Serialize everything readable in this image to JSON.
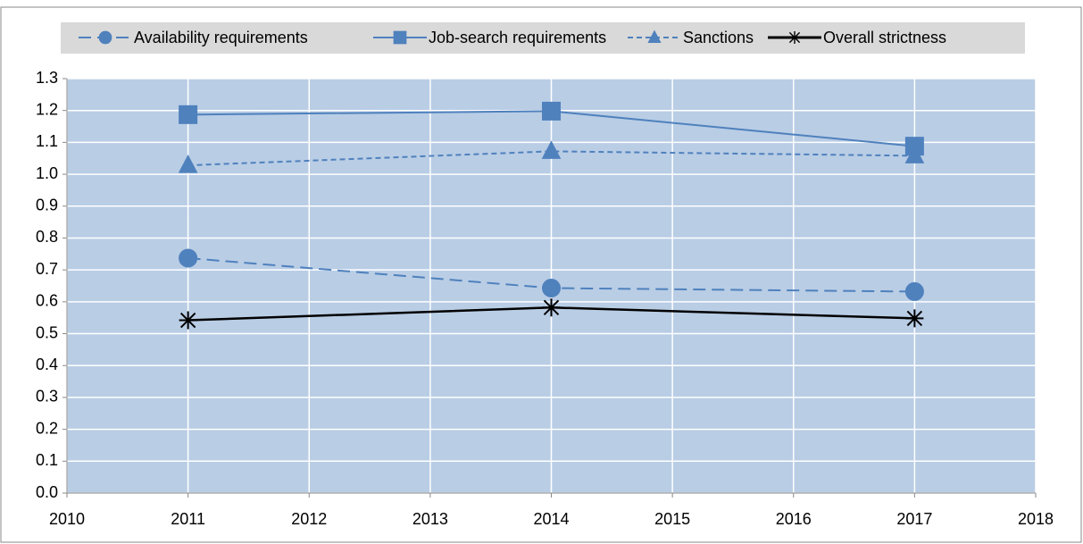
{
  "chart_data": {
    "type": "line",
    "x": [
      2011,
      2014,
      2017
    ],
    "series": [
      {
        "name": "Availability requirements",
        "color": "#4f81bd",
        "dash": "long",
        "marker": "circle",
        "values": [
          0.737,
          0.643,
          0.632
        ]
      },
      {
        "name": "Job-search requirements",
        "color": "#4f81bd",
        "dash": "solid",
        "marker": "square",
        "values": [
          1.187,
          1.198,
          1.088
        ]
      },
      {
        "name": "Sanctions",
        "color": "#4f81bd",
        "dash": "short",
        "marker": "triangle",
        "values": [
          1.028,
          1.072,
          1.058
        ]
      },
      {
        "name": "Overall strictness",
        "color": "#000000",
        "dash": "solid",
        "marker": "asterisk",
        "values": [
          0.542,
          0.582,
          0.548
        ]
      }
    ],
    "xlim": [
      2010,
      2018
    ],
    "xticks": [
      2010,
      2011,
      2012,
      2013,
      2014,
      2015,
      2016,
      2017,
      2018
    ],
    "ylim": [
      0,
      1.3
    ],
    "yticks": [
      {
        "value": 0,
        "label": "0.0"
      },
      0.1,
      0.2,
      0.3,
      0.4,
      0.5,
      0.6,
      0.7,
      0.8,
      0.9,
      {
        "value": 1,
        "label": "1.0"
      },
      1.1,
      1.2,
      1.3
    ],
    "grid": true,
    "legend": "top"
  }
}
